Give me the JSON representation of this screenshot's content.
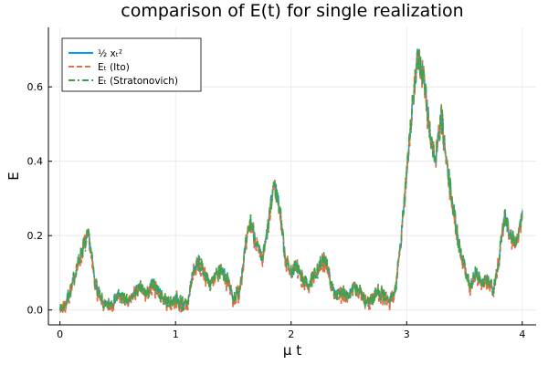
{
  "chart_data": {
    "type": "line",
    "title": "comparison of E(t) for single realization",
    "xlabel": "μ t",
    "ylabel": "E",
    "xlim": [
      -0.1,
      4.12
    ],
    "ylim": [
      -0.04,
      0.76
    ],
    "xticks": [
      0,
      1,
      2,
      3,
      4
    ],
    "xtick_labels": [
      "0",
      "1",
      "2",
      "3",
      "4"
    ],
    "yticks": [
      0.0,
      0.2,
      0.4,
      0.6
    ],
    "ytick_labels": [
      "0.0",
      "0.2",
      "0.4",
      "0.6"
    ],
    "grid": true,
    "legend_position": "top-left",
    "colors": {
      "s1": "#009af9",
      "s2": "#e26f46",
      "s3": "#3da44d",
      "axis": "#000000",
      "grid": "#e6e6e6"
    },
    "series": [
      {
        "name": "½ xₜ²",
        "style": "solid"
      },
      {
        "name": "Eₜ (Ito)",
        "style": "dashed"
      },
      {
        "name": "Eₜ (Stratonovich)",
        "style": "dashdot"
      }
    ],
    "x": [
      0.0,
      0.05,
      0.1,
      0.15,
      0.2,
      0.25,
      0.3,
      0.35,
      0.4,
      0.45,
      0.5,
      0.55,
      0.6,
      0.65,
      0.7,
      0.75,
      0.8,
      0.85,
      0.9,
      0.95,
      1.0,
      1.05,
      1.1,
      1.15,
      1.2,
      1.25,
      1.3,
      1.35,
      1.4,
      1.45,
      1.5,
      1.55,
      1.6,
      1.65,
      1.7,
      1.75,
      1.8,
      1.85,
      1.9,
      1.95,
      2.0,
      2.05,
      2.1,
      2.15,
      2.2,
      2.25,
      2.3,
      2.35,
      2.4,
      2.45,
      2.5,
      2.55,
      2.6,
      2.65,
      2.7,
      2.75,
      2.8,
      2.85,
      2.9,
      2.95,
      3.0,
      3.05,
      3.1,
      3.15,
      3.2,
      3.25,
      3.3,
      3.35,
      3.4,
      3.45,
      3.5,
      3.55,
      3.6,
      3.65,
      3.7,
      3.75,
      3.8,
      3.85,
      3.9,
      3.95,
      4.0
    ],
    "y_base": [
      0.0,
      0.02,
      0.06,
      0.12,
      0.17,
      0.2,
      0.08,
      0.03,
      0.01,
      0.02,
      0.04,
      0.03,
      0.02,
      0.05,
      0.06,
      0.04,
      0.07,
      0.05,
      0.03,
      0.02,
      0.03,
      0.02,
      0.01,
      0.1,
      0.13,
      0.1,
      0.07,
      0.09,
      0.11,
      0.08,
      0.03,
      0.05,
      0.16,
      0.24,
      0.18,
      0.13,
      0.22,
      0.34,
      0.28,
      0.14,
      0.1,
      0.12,
      0.08,
      0.07,
      0.09,
      0.12,
      0.14,
      0.06,
      0.04,
      0.05,
      0.04,
      0.06,
      0.05,
      0.02,
      0.03,
      0.05,
      0.04,
      0.02,
      0.05,
      0.18,
      0.38,
      0.55,
      0.68,
      0.62,
      0.48,
      0.4,
      0.52,
      0.38,
      0.28,
      0.18,
      0.12,
      0.06,
      0.1,
      0.07,
      0.08,
      0.06,
      0.14,
      0.26,
      0.2,
      0.18,
      0.26
    ]
  }
}
